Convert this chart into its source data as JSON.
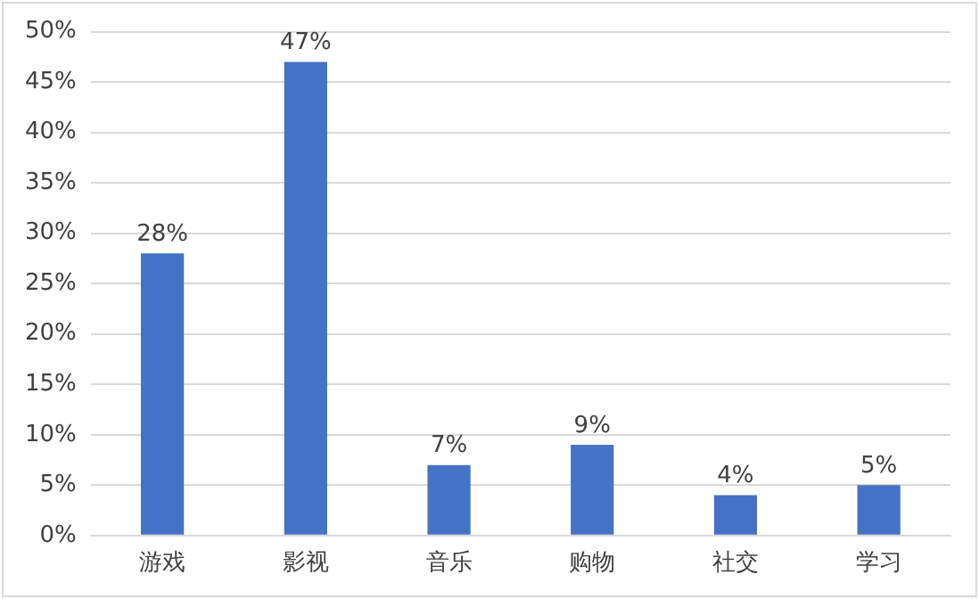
{
  "chart_data": {
    "type": "bar",
    "categories": [
      "游戏",
      "影视",
      "音乐",
      "购物",
      "社交",
      "学习"
    ],
    "values": [
      28,
      47,
      7,
      9,
      4,
      5
    ],
    "value_labels": [
      "28%",
      "47%",
      "7%",
      "9%",
      "4%",
      "5%"
    ],
    "color": "#4472c4",
    "ylim": [
      0,
      50
    ],
    "yticks": [
      {
        "value": 0,
        "label": "0%"
      },
      {
        "value": 5,
        "label": "5%"
      },
      {
        "value": 10,
        "label": "10%"
      },
      {
        "value": 15,
        "label": "15%"
      },
      {
        "value": 20,
        "label": "20%"
      },
      {
        "value": 25,
        "label": "25%"
      },
      {
        "value": 30,
        "label": "30%"
      },
      {
        "value": 35,
        "label": "35%"
      },
      {
        "value": 40,
        "label": "40%"
      },
      {
        "value": 45,
        "label": "45%"
      },
      {
        "value": 50,
        "label": "50%"
      }
    ],
    "grid": "y"
  }
}
